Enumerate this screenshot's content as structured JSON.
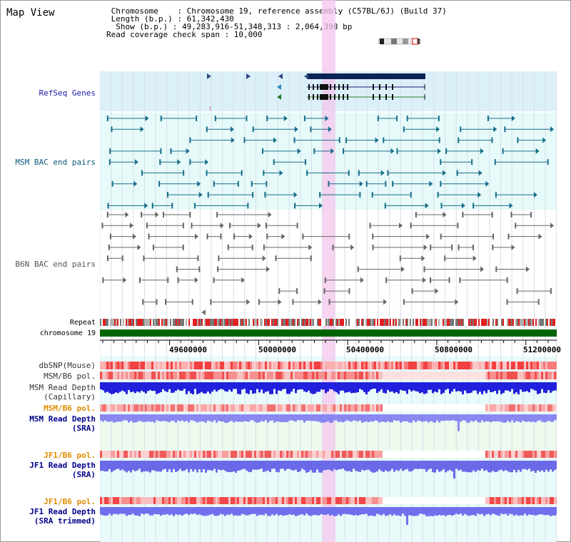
{
  "header": {
    "view_title": "Map View",
    "line1": " Chromosome    : Chromosome 19, reference assembly (C57BL/6J) (Build 37)",
    "line2": " Length (b.p.) : 61,342,430",
    "line3": "  Show (b.p.) : 49,283,916-51,348,313 : 2,064,398 bp",
    "line4": "Read coverage check span : 10,000"
  },
  "colors": {
    "refseq_bg": "#dcf0fa",
    "msm_bg": "#e6fafa",
    "highlight": "#f7c6ee",
    "chromosome_bar": "#006400",
    "msm_label": "#0a5a7a",
    "b6n_label": "#555555",
    "pol_orange": "#e08c00",
    "read_depth_blue": "#0000aa"
  },
  "tracks": {
    "refseq": "RefSeq Genes",
    "msm_bac": "MSM BAC end pairs",
    "b6n_bac": "B6N BAC end pairs",
    "repeat": "Repeat",
    "chromosome": "chromosome 19",
    "dbsnp": "dbSNP(Mouse)",
    "msm_b6_pol": "MSM/B6 pol.",
    "msm_depth_cap_1": "MSM Read Depth",
    "msm_depth_cap_2": "(Capillary)",
    "msm_b6_pol_2": "MSM/B6 pol.",
    "msm_depth_sra_1": "MSM Read Depth",
    "msm_depth_sra_2": "(SRA)",
    "jf1_pol_1": "JF1/B6 pol.",
    "jf1_depth_1": "JF1 Read Depth",
    "jf1_depth_1b": "(SRA)",
    "jf1_pol_2": "JF1/B6 pol.",
    "jf1_depth_2": "JF1 Read Depth",
    "jf1_depth_2b": "(SRA trimmed)"
  },
  "axis": {
    "ticks": [
      "49600000",
      "50000000",
      "50400000",
      "50800000",
      "51200000"
    ]
  }
}
